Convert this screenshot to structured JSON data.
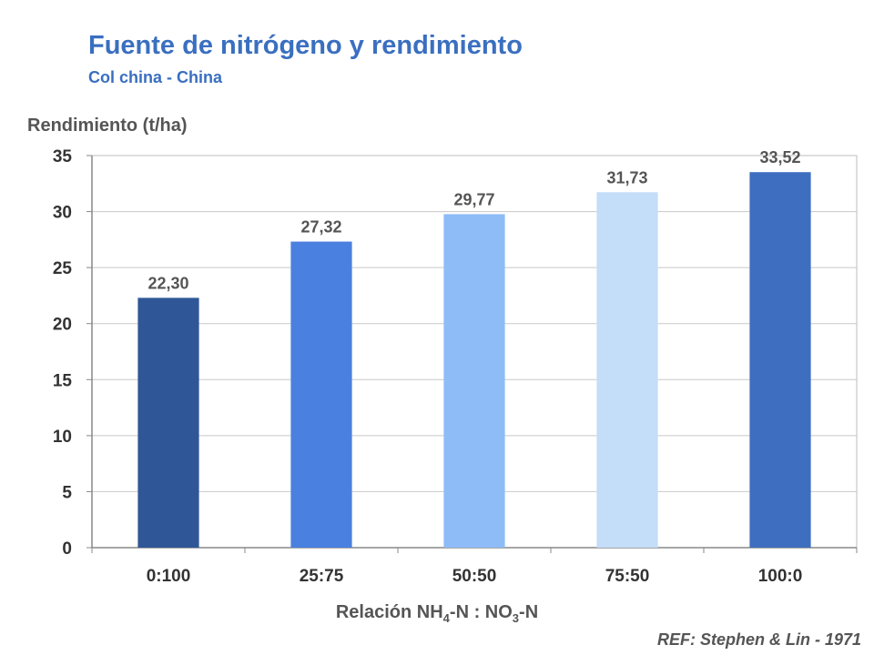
{
  "chart_data": {
    "type": "bar",
    "title": "Fuente de nitrógeno y rendimiento",
    "subtitle": "Col china - China",
    "ylabel": "Rendimiento (t/ha)",
    "xlabel": {
      "parts": [
        "Relación NH",
        "4",
        "-N : NO",
        "3",
        "-N"
      ]
    },
    "categories": [
      "0:100",
      "25:75",
      "50:50",
      "75:50",
      "100:0"
    ],
    "values": [
      22.3,
      27.32,
      29.77,
      31.73,
      33.52
    ],
    "value_labels": [
      "22,30",
      "27,32",
      "29,77",
      "31,73",
      "33,52"
    ],
    "bar_colors": [
      "#2f5797",
      "#4a80e0",
      "#8ebcf7",
      "#c4ddf8",
      "#3e6ebf"
    ],
    "ylim": [
      0,
      35
    ],
    "yticks": [
      0,
      5,
      10,
      15,
      20,
      25,
      30,
      35
    ],
    "grid": true,
    "legend": "none"
  },
  "reference": "REF: Stephen & Lin - 1971"
}
